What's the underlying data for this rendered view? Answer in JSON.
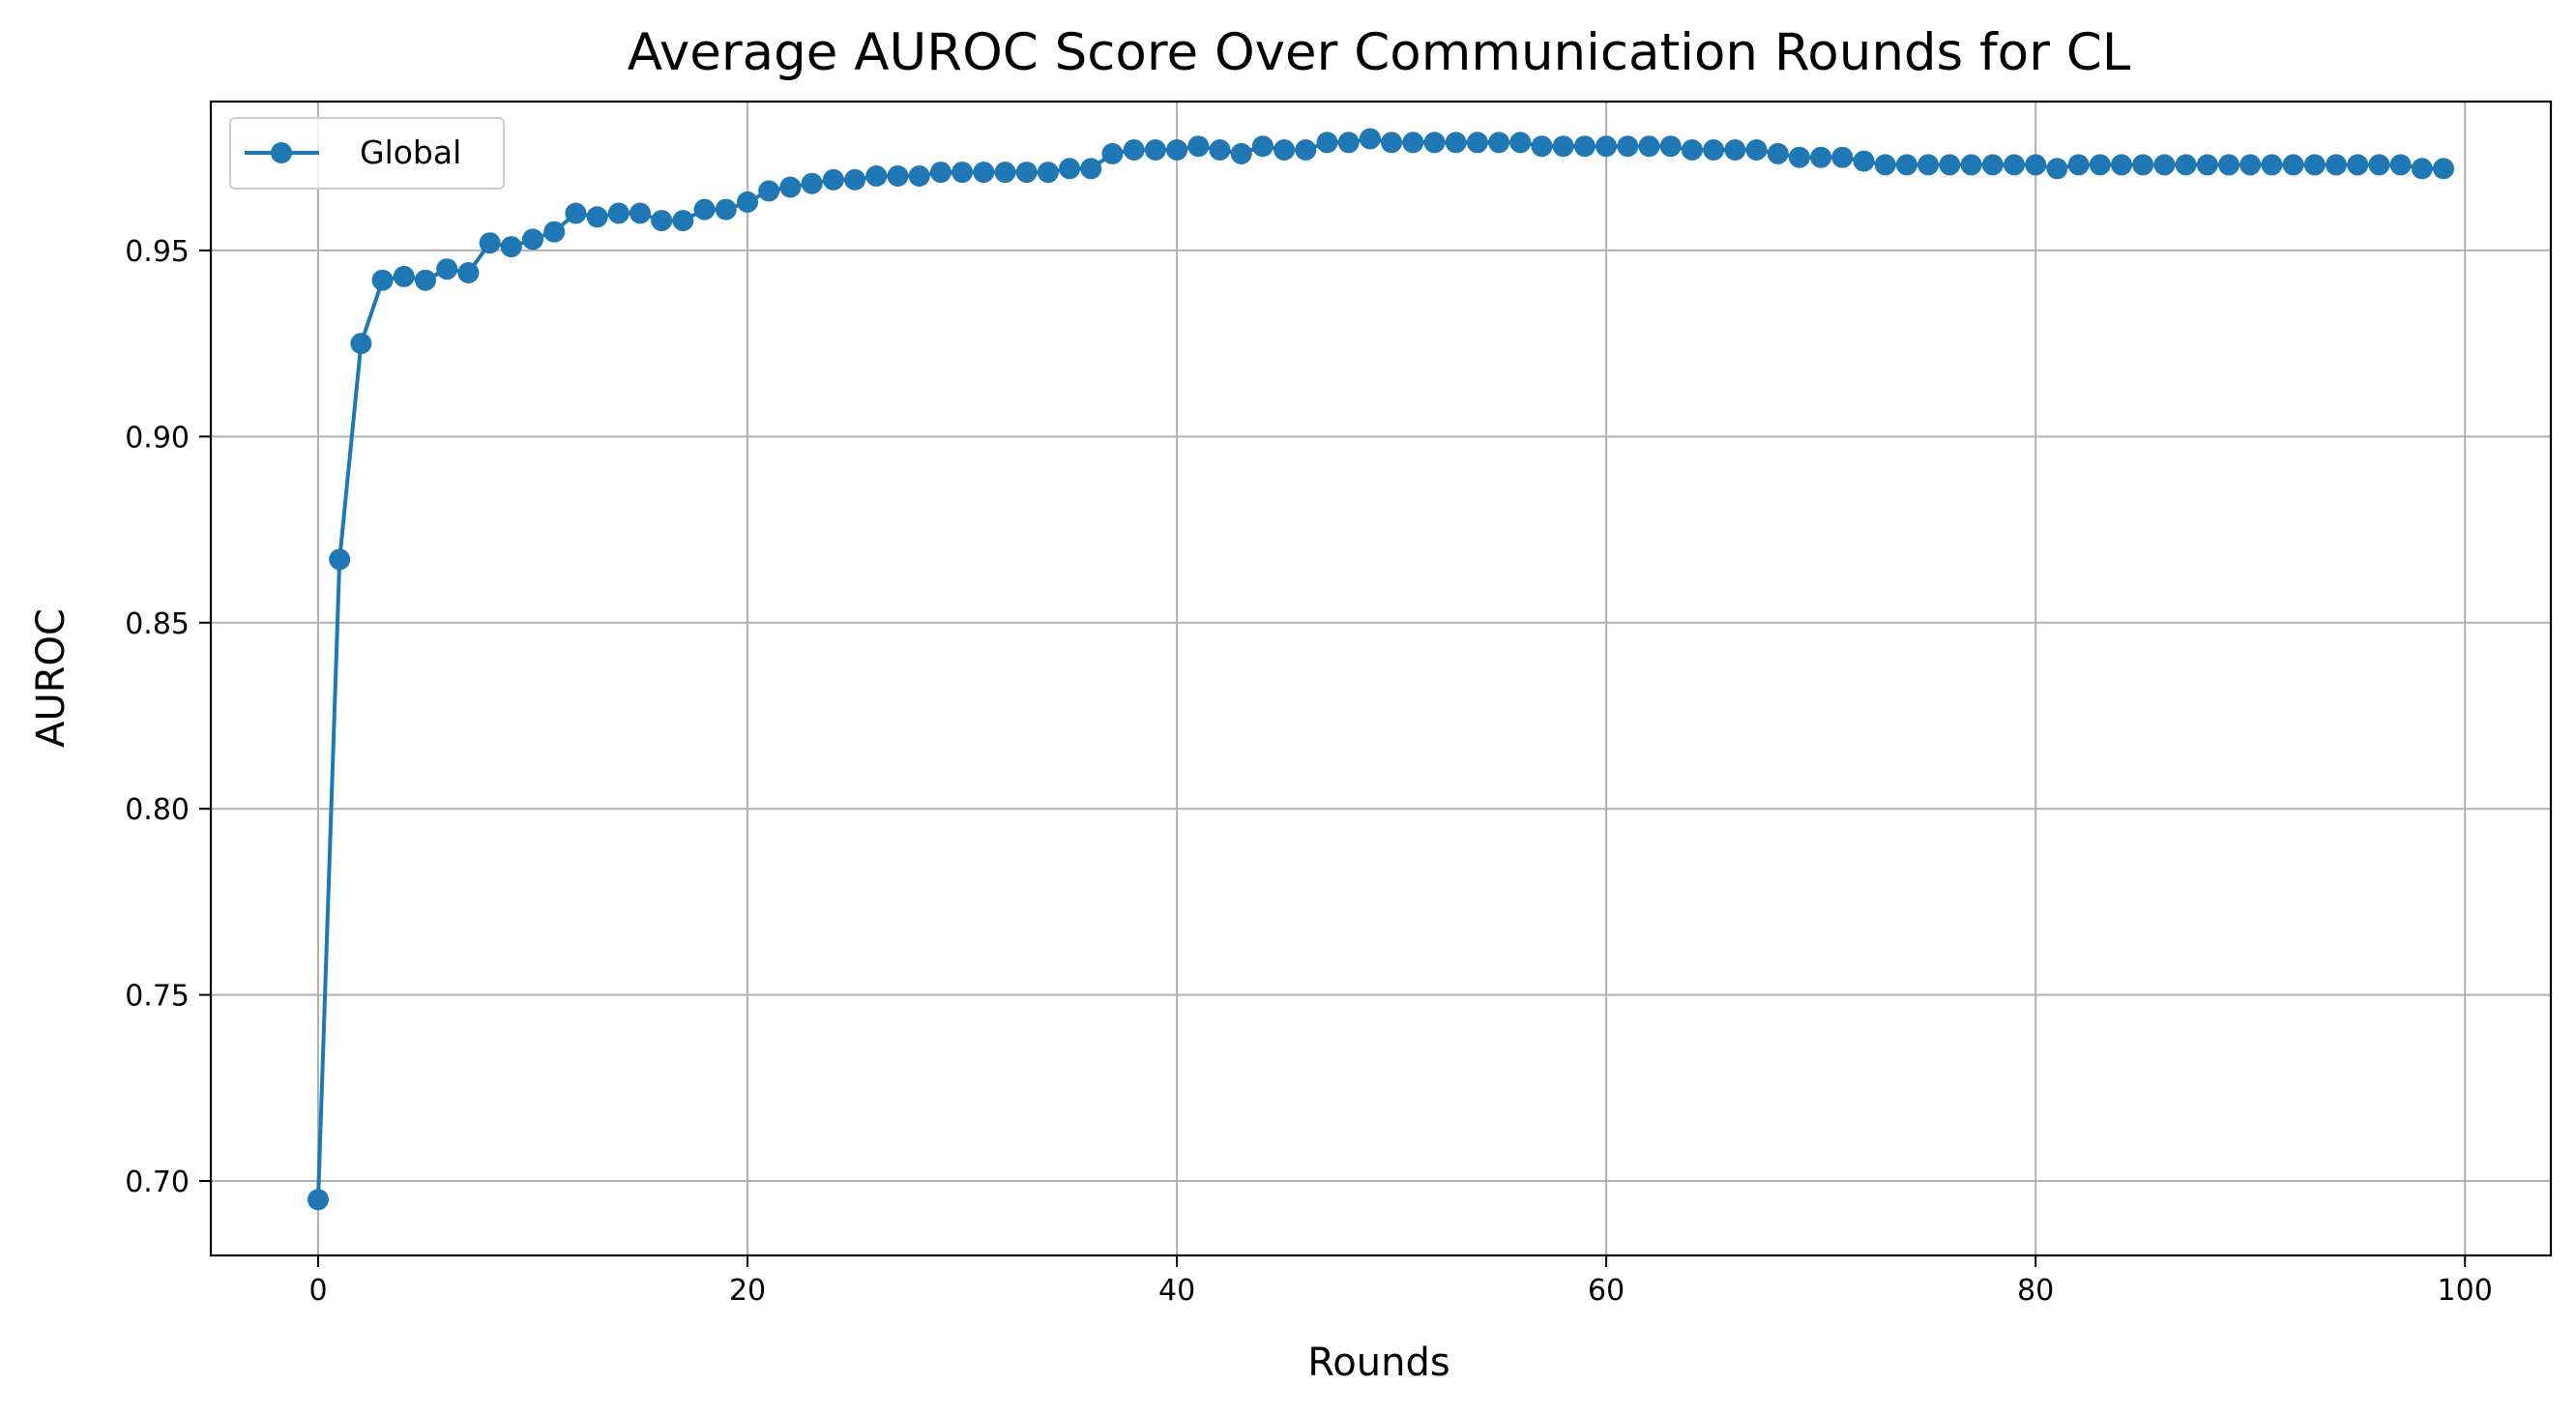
{
  "chart_data": {
    "type": "line",
    "title": "Average AUROC Score Over Communication Rounds for CL",
    "xlabel": "Rounds",
    "ylabel": "AUROC",
    "xlim": [
      -5,
      104
    ],
    "ylim": [
      0.68,
      0.99
    ],
    "xticks": [
      0,
      20,
      40,
      60,
      80,
      100
    ],
    "yticks": [
      0.7,
      0.75,
      0.8,
      0.85,
      0.9,
      0.95
    ],
    "grid": true,
    "legend_position": "top-left",
    "colors": {
      "series": "#1f77b4",
      "grid": "#b0b0b0",
      "axis": "#000000"
    },
    "series": [
      {
        "name": "Global",
        "marker": "circle",
        "x": [
          0,
          1,
          2,
          3,
          4,
          5,
          6,
          7,
          8,
          9,
          10,
          11,
          12,
          13,
          14,
          15,
          16,
          17,
          18,
          19,
          20,
          21,
          22,
          23,
          24,
          25,
          26,
          27,
          28,
          29,
          30,
          31,
          32,
          33,
          34,
          35,
          36,
          37,
          38,
          39,
          40,
          41,
          42,
          43,
          44,
          45,
          46,
          47,
          48,
          49,
          50,
          51,
          52,
          53,
          54,
          55,
          56,
          57,
          58,
          59,
          60,
          61,
          62,
          63,
          64,
          65,
          66,
          67,
          68,
          69,
          70,
          71,
          72,
          73,
          74,
          75,
          76,
          77,
          78,
          79,
          80,
          81,
          82,
          83,
          84,
          85,
          86,
          87,
          88,
          89,
          90,
          91,
          92,
          93,
          94,
          95,
          96,
          97,
          98,
          99
        ],
        "values": [
          0.695,
          0.867,
          0.925,
          0.942,
          0.943,
          0.942,
          0.945,
          0.944,
          0.952,
          0.951,
          0.953,
          0.955,
          0.96,
          0.959,
          0.96,
          0.96,
          0.958,
          0.958,
          0.961,
          0.961,
          0.963,
          0.966,
          0.967,
          0.968,
          0.969,
          0.969,
          0.97,
          0.97,
          0.97,
          0.971,
          0.971,
          0.971,
          0.971,
          0.971,
          0.971,
          0.972,
          0.972,
          0.976,
          0.977,
          0.977,
          0.977,
          0.978,
          0.977,
          0.976,
          0.978,
          0.977,
          0.977,
          0.979,
          0.979,
          0.98,
          0.979,
          0.979,
          0.979,
          0.979,
          0.979,
          0.979,
          0.979,
          0.978,
          0.978,
          0.978,
          0.978,
          0.978,
          0.978,
          0.978,
          0.977,
          0.977,
          0.977,
          0.977,
          0.976,
          0.975,
          0.975,
          0.975,
          0.974,
          0.973,
          0.973,
          0.973,
          0.973,
          0.973,
          0.973,
          0.973,
          0.973,
          0.972,
          0.973,
          0.973,
          0.973,
          0.973,
          0.973,
          0.973,
          0.973,
          0.973,
          0.973,
          0.973,
          0.973,
          0.973,
          0.973,
          0.973,
          0.973,
          0.973,
          0.972,
          0.972
        ]
      }
    ]
  }
}
